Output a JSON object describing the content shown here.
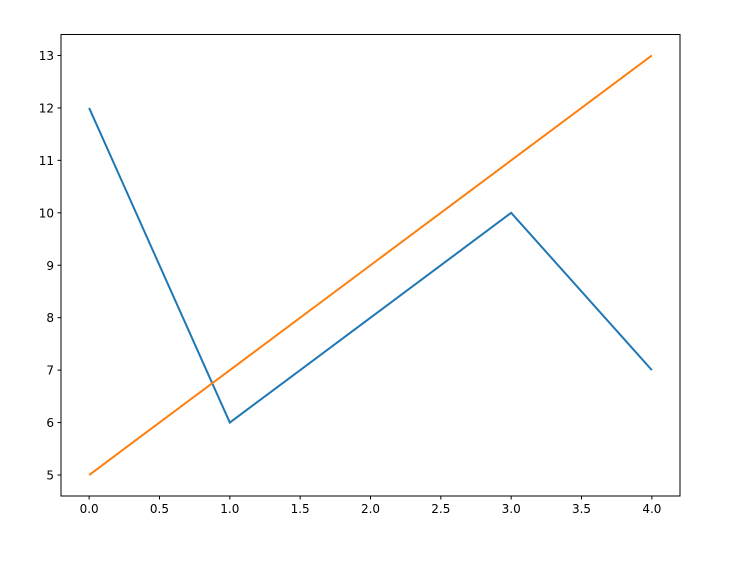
{
  "chart_data": {
    "type": "line",
    "title": "",
    "xlabel": "",
    "ylabel": "",
    "x": [
      0,
      1,
      2,
      3,
      4
    ],
    "series": [
      {
        "values": [
          12,
          6,
          8,
          10,
          7
        ],
        "color": "#1f77b4"
      },
      {
        "values": [
          5,
          7,
          9,
          11,
          13
        ],
        "color": "#ff7f0e"
      }
    ],
    "xlim": [
      -0.2,
      4.2
    ],
    "ylim": [
      4.6,
      13.4
    ],
    "xticks": [
      "0.0",
      "0.5",
      "1.0",
      "1.5",
      "2.0",
      "2.5",
      "3.0",
      "3.5",
      "4.0"
    ],
    "yticks": [
      "5",
      "6",
      "7",
      "8",
      "9",
      "10",
      "11",
      "12",
      "13"
    ],
    "grid": false
  }
}
